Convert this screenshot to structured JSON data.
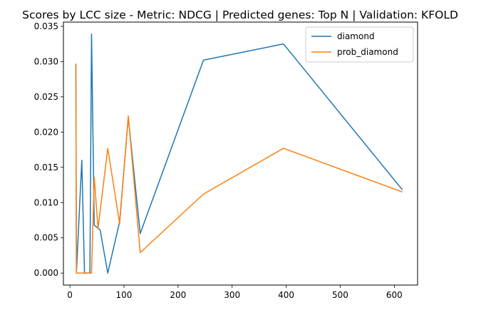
{
  "chart_data": {
    "type": "line",
    "title": "Scores by LCC size - Metric: NDCG | Predicted genes: Top N | Validation: KFOLD",
    "xlabel": "",
    "ylabel": "",
    "xlim": [
      -12,
      643
    ],
    "ylim": [
      -0.0017,
      0.0356
    ],
    "x_ticks": [
      0,
      100,
      200,
      300,
      400,
      500,
      600
    ],
    "y_ticks": [
      0.0,
      0.005,
      0.01,
      0.015,
      0.02,
      0.025,
      0.03,
      0.035
    ],
    "x_tick_labels": [
      "0",
      "100",
      "200",
      "300",
      "400",
      "500",
      "600"
    ],
    "y_tick_labels": [
      "0.000",
      "0.005",
      "0.010",
      "0.015",
      "0.020",
      "0.025",
      "0.030",
      "0.035"
    ],
    "grid": false,
    "legend_position": "top-right",
    "series": [
      {
        "name": "diamond",
        "color": "#1f77b4",
        "points": [
          [
            11,
            0.0297
          ],
          [
            12,
            0.0
          ],
          [
            22,
            0.016
          ],
          [
            27,
            0.0
          ],
          [
            37,
            0.0
          ],
          [
            40,
            0.0339
          ],
          [
            45,
            0.0068
          ],
          [
            56,
            0.0061
          ],
          [
            70,
            0.0
          ],
          [
            92,
            0.0073
          ],
          [
            108,
            0.0221
          ],
          [
            130,
            0.0056
          ],
          [
            247,
            0.0302
          ],
          [
            395,
            0.0325
          ],
          [
            615,
            0.0118
          ]
        ]
      },
      {
        "name": "prob_diamond",
        "color": "#ff7f0e",
        "points": [
          [
            11,
            0.0297
          ],
          [
            12,
            0.0
          ],
          [
            22,
            0.0
          ],
          [
            27,
            0.0
          ],
          [
            37,
            0.0
          ],
          [
            40,
            0.0
          ],
          [
            45,
            0.0136
          ],
          [
            52,
            0.0063
          ],
          [
            70,
            0.0177
          ],
          [
            92,
            0.007
          ],
          [
            108,
            0.0223
          ],
          [
            130,
            0.0029
          ],
          [
            247,
            0.0112
          ],
          [
            395,
            0.0177
          ],
          [
            615,
            0.0115
          ]
        ]
      }
    ]
  }
}
